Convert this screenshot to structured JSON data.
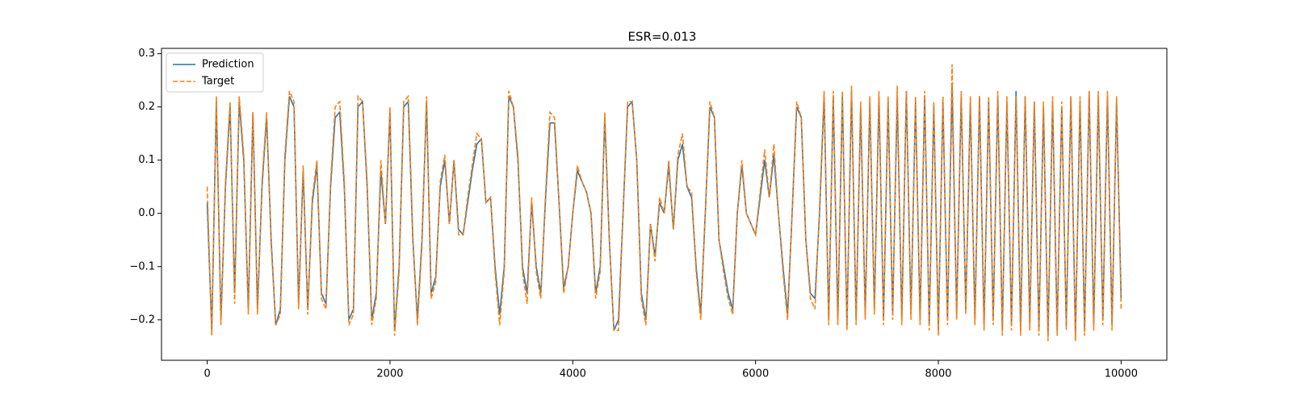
{
  "chart_data": {
    "type": "line",
    "title": "ESR=0.013",
    "legend": "upper left",
    "xlim": [
      -500,
      10500
    ],
    "ylim": [
      -0.276,
      0.31
    ],
    "xticks": [
      0,
      2000,
      4000,
      6000,
      8000,
      10000
    ],
    "yticks": [
      {
        "value": -0.2,
        "label": "−0.2"
      },
      {
        "value": -0.1,
        "label": "−0.1"
      },
      {
        "value": 0,
        "label": "0.0"
      },
      0.1,
      0.2,
      0.3
    ],
    "x": [
      0,
      50,
      100,
      150,
      200,
      250,
      300,
      350,
      400,
      450,
      500,
      550,
      600,
      650,
      700,
      750,
      800,
      850,
      900,
      950,
      1000,
      1050,
      1100,
      1150,
      1200,
      1250,
      1300,
      1350,
      1400,
      1450,
      1500,
      1550,
      1600,
      1650,
      1700,
      1750,
      1800,
      1850,
      1900,
      1950,
      2000,
      2050,
      2100,
      2150,
      2200,
      2250,
      2300,
      2350,
      2400,
      2450,
      2500,
      2550,
      2600,
      2650,
      2700,
      2750,
      2800,
      2850,
      2900,
      2950,
      3000,
      3050,
      3100,
      3150,
      3200,
      3250,
      3300,
      3350,
      3400,
      3450,
      3500,
      3550,
      3600,
      3650,
      3700,
      3750,
      3800,
      3850,
      3900,
      3950,
      4000,
      4050,
      4100,
      4150,
      4200,
      4250,
      4300,
      4350,
      4400,
      4450,
      4500,
      4550,
      4600,
      4650,
      4700,
      4750,
      4800,
      4850,
      4900,
      4950,
      5000,
      5050,
      5100,
      5150,
      5200,
      5250,
      5300,
      5350,
      5400,
      5450,
      5500,
      5550,
      5600,
      5650,
      5700,
      5750,
      5800,
      5850,
      5900,
      5950,
      6000,
      6050,
      6100,
      6150,
      6200,
      6250,
      6300,
      6350,
      6400,
      6450,
      6500,
      6550,
      6600,
      6650,
      6700,
      6750,
      6800,
      6850,
      6900,
      6950,
      7000,
      7050,
      7100,
      7150,
      7200,
      7250,
      7300,
      7350,
      7400,
      7450,
      7500,
      7550,
      7600,
      7650,
      7700,
      7750,
      7800,
      7850,
      7900,
      7950,
      8000,
      8050,
      8100,
      8150,
      8200,
      8250,
      8300,
      8350,
      8400,
      8450,
      8500,
      8550,
      8600,
      8650,
      8700,
      8750,
      8800,
      8850,
      8900,
      8950,
      9000,
      9050,
      9100,
      9150,
      9200,
      9250,
      9300,
      9350,
      9400,
      9450,
      9500,
      9550,
      9600,
      9650,
      9700,
      9750,
      9800,
      9850,
      9900,
      9950,
      10000
    ],
    "series": [
      {
        "name": "Prediction",
        "color": "#1f77b4",
        "dash": false,
        "values": [
          0.02,
          -0.22,
          0.21,
          -0.2,
          0.05,
          0.2,
          -0.15,
          0.21,
          0.1,
          -0.18,
          0.19,
          -0.18,
          0.05,
          0.18,
          -0.05,
          -0.21,
          -0.18,
          0.1,
          0.22,
          0.2,
          -0.17,
          0.08,
          -0.18,
          0.02,
          0.09,
          -0.15,
          -0.17,
          0.05,
          0.18,
          0.19,
          0.05,
          -0.2,
          -0.18,
          0.2,
          0.21,
          0.05,
          -0.2,
          -0.15,
          0.08,
          -0.02,
          0.19,
          -0.22,
          -0.1,
          0.2,
          0.21,
          -0.05,
          -0.2,
          -0.05,
          0.21,
          -0.15,
          -0.12,
          0.05,
          0.1,
          -0.02,
          0.1,
          -0.03,
          -0.04,
          0.02,
          0.08,
          0.13,
          0.14,
          0.02,
          0.03,
          -0.1,
          -0.19,
          -0.1,
          0.22,
          0.2,
          0.1,
          -0.1,
          -0.15,
          0.02,
          -0.1,
          -0.15,
          0.02,
          0.17,
          0.17,
          0.02,
          -0.14,
          -0.1,
          0.0,
          0.08,
          0.06,
          0.04,
          0.0,
          -0.15,
          -0.1,
          0.18,
          -0.05,
          -0.22,
          -0.2,
          0.0,
          0.2,
          0.21,
          0.1,
          -0.15,
          -0.2,
          -0.02,
          -0.08,
          0.02,
          0.0,
          0.09,
          -0.03,
          0.1,
          0.13,
          0.05,
          0.03,
          -0.1,
          -0.19,
          0.0,
          0.2,
          0.18,
          -0.05,
          -0.1,
          -0.15,
          -0.18,
          0.0,
          0.09,
          0.0,
          -0.02,
          -0.04,
          0.03,
          0.1,
          0.03,
          0.11,
          0.0,
          -0.1,
          -0.19,
          0.0,
          0.2,
          0.18,
          -0.05,
          -0.15,
          -0.16,
          0.0,
          0.22,
          -0.2,
          0.22,
          -0.2,
          0.22,
          -0.21,
          0.23,
          -0.2,
          0.2,
          -0.19,
          0.21,
          -0.18,
          0.22,
          -0.2,
          0.21,
          -0.19,
          0.22,
          -0.2,
          0.23,
          -0.19,
          0.21,
          -0.2,
          0.22,
          -0.21,
          0.2,
          -0.22,
          0.21,
          -0.2,
          0.24,
          -0.19,
          0.22,
          -0.18,
          0.21,
          -0.2,
          0.22,
          -0.21,
          0.21,
          -0.2,
          0.22,
          -0.22,
          0.21,
          -0.21,
          0.23,
          -0.22,
          0.22,
          -0.21,
          0.21,
          -0.22,
          0.2,
          -0.23,
          0.21,
          -0.22,
          0.2,
          -0.21,
          0.22,
          -0.23,
          0.21,
          -0.22,
          0.23,
          -0.21,
          0.22,
          -0.2,
          0.22,
          -0.21,
          0.21,
          -0.16
        ]
      },
      {
        "name": "Target",
        "color": "#ff7f0e",
        "dash": true,
        "values": [
          0.05,
          -0.23,
          0.22,
          -0.21,
          0.06,
          0.21,
          -0.17,
          0.22,
          0.11,
          -0.19,
          0.19,
          -0.19,
          0.06,
          0.19,
          -0.06,
          -0.21,
          -0.19,
          0.11,
          0.23,
          0.21,
          -0.18,
          0.09,
          -0.19,
          0.03,
          0.1,
          -0.16,
          -0.18,
          0.06,
          0.2,
          0.21,
          0.06,
          -0.21,
          -0.19,
          0.22,
          0.21,
          0.06,
          -0.21,
          -0.16,
          0.1,
          -0.02,
          0.2,
          -0.23,
          -0.11,
          0.21,
          0.22,
          -0.04,
          -0.21,
          -0.06,
          0.22,
          -0.16,
          -0.13,
          0.06,
          0.11,
          -0.02,
          0.1,
          -0.04,
          -0.04,
          0.03,
          0.09,
          0.15,
          0.14,
          0.02,
          0.03,
          -0.11,
          -0.21,
          -0.11,
          0.23,
          0.2,
          0.11,
          -0.11,
          -0.17,
          0.03,
          -0.11,
          -0.16,
          0.03,
          0.19,
          0.18,
          0.02,
          -0.15,
          -0.1,
          0.0,
          0.09,
          0.06,
          0.04,
          0.0,
          -0.16,
          -0.11,
          0.19,
          -0.05,
          -0.22,
          -0.22,
          0.0,
          0.21,
          0.21,
          0.1,
          -0.16,
          -0.21,
          -0.02,
          -0.09,
          0.03,
          0.0,
          0.1,
          -0.03,
          0.11,
          0.15,
          0.05,
          0.04,
          -0.11,
          -0.2,
          0.0,
          0.21,
          0.18,
          -0.05,
          -0.11,
          -0.16,
          -0.19,
          0.0,
          0.1,
          0.0,
          -0.02,
          -0.04,
          0.04,
          0.12,
          0.03,
          0.13,
          0.0,
          -0.11,
          -0.2,
          0.0,
          0.21,
          0.18,
          -0.05,
          -0.16,
          -0.18,
          0.01,
          0.23,
          -0.21,
          0.23,
          -0.21,
          0.23,
          -0.22,
          0.24,
          -0.21,
          0.21,
          -0.2,
          0.22,
          -0.19,
          0.23,
          -0.21,
          0.22,
          -0.2,
          0.24,
          -0.21,
          0.23,
          -0.2,
          0.22,
          -0.21,
          0.23,
          -0.22,
          0.21,
          -0.23,
          0.22,
          -0.21,
          0.28,
          -0.2,
          0.23,
          -0.19,
          0.22,
          -0.21,
          0.22,
          -0.22,
          0.22,
          -0.21,
          0.23,
          -0.23,
          0.22,
          -0.22,
          0.22,
          -0.23,
          0.22,
          -0.22,
          0.21,
          -0.23,
          0.21,
          -0.24,
          0.22,
          -0.23,
          0.21,
          -0.22,
          0.22,
          -0.24,
          0.22,
          -0.23,
          0.23,
          -0.22,
          0.23,
          -0.21,
          0.23,
          -0.22,
          0.22,
          -0.18
        ]
      }
    ]
  }
}
